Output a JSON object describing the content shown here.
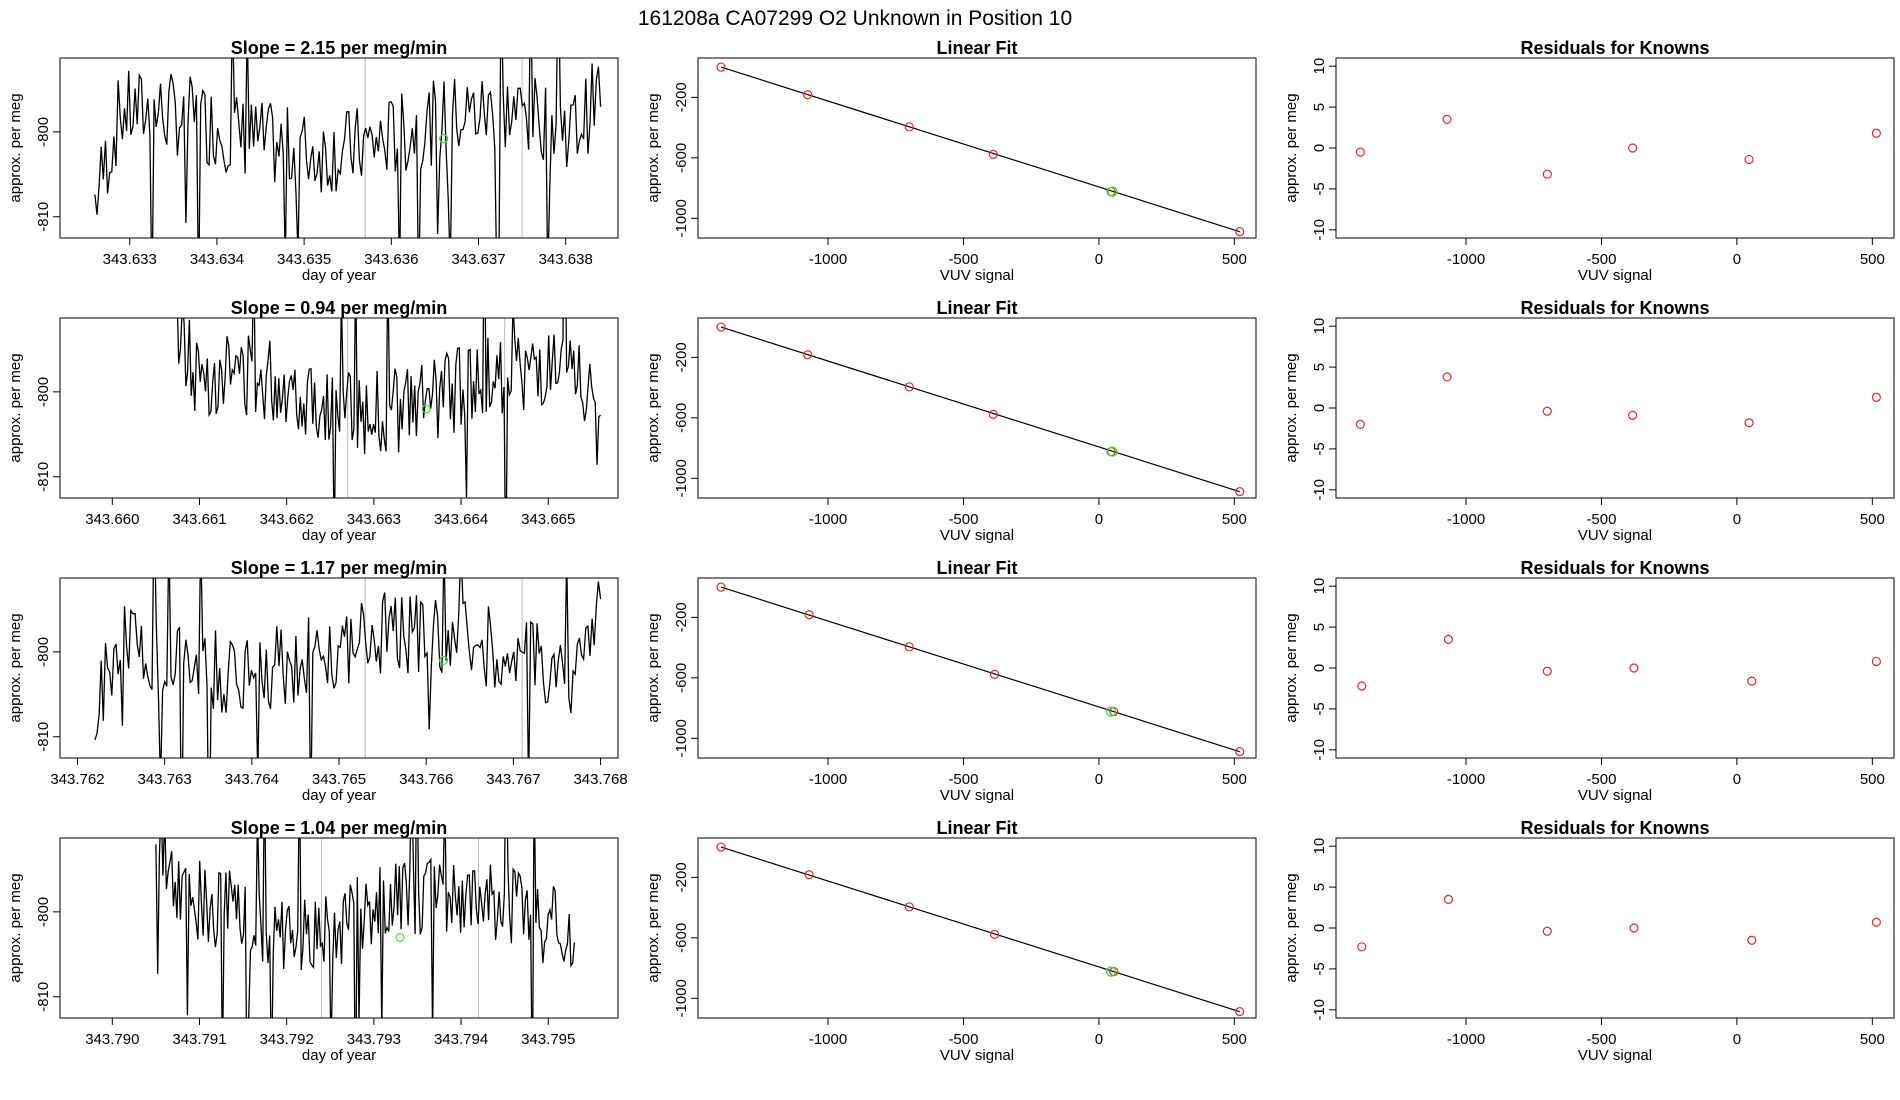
{
  "figure_title": "161208a      CA07299    O2 Unknown in Position  10",
  "colors": {
    "trace": "#000000",
    "unknown": "#3ddc3d",
    "known": "#d03030",
    "cursor": "#bbbbbb",
    "fit": "#000000"
  },
  "chart_data": [
    {
      "panel": "row1-timeseries",
      "type": "line",
      "title": "Slope =  2.15  per meg/min",
      "xlabel": "day of year",
      "ylabel": "approx. per meg",
      "xlim": [
        343.6322,
        343.6386
      ],
      "ylim": [
        -812.5,
        -791.3
      ],
      "xticks": [
        343.633,
        343.634,
        343.635,
        343.636,
        343.637,
        343.638
      ],
      "xtick_labels": [
        "343.633",
        "343.634",
        "343.635",
        "343.636",
        "343.637",
        "343.638"
      ],
      "yticks": [
        -800,
        -810
      ],
      "ytick_labels": [
        "-800",
        "-810"
      ],
      "x_start": 343.6326,
      "x_end": 343.6384,
      "y_start": -808,
      "y_end": -795,
      "vlines": [
        343.6357,
        343.6375
      ],
      "unknown_point": [
        343.6366,
        -800.8
      ],
      "seed": 7
    },
    {
      "panel": "row1-linearfit",
      "type": "scatter",
      "title": "Linear Fit",
      "xlabel": "VUV signal",
      "ylabel": "approx. per meg",
      "xlim": [
        -1480,
        580
      ],
      "ylim": [
        -1130,
        60
      ],
      "xticks": [
        -1000,
        -500,
        0,
        500
      ],
      "xtick_labels": [
        "-1000",
        "-500",
        "0",
        "500"
      ],
      "yticks": [
        -200,
        -600,
        -1000
      ],
      "ytick_labels": [
        "-200",
        "-600",
        "-1000"
      ],
      "fit_line": [
        [
          -1395,
          0
        ],
        [
          520,
          -1088
        ]
      ],
      "knowns_x": [
        -1395,
        -1075,
        -700,
        -390,
        45,
        520
      ],
      "knowns_y": [
        0,
        -183,
        -395,
        -577,
        -823,
        -1088
      ],
      "unknown": [
        50,
        -823
      ]
    },
    {
      "panel": "row1-residuals",
      "type": "scatter",
      "title": "Residuals for Knowns",
      "xlabel": "VUV signal",
      "ylabel": "approx. per meg",
      "xlim": [
        -1480,
        580
      ],
      "ylim": [
        -11,
        11
      ],
      "xticks": [
        -1000,
        -500,
        0,
        500
      ],
      "xtick_labels": [
        "-1000",
        "-500",
        "0",
        "500"
      ],
      "yticks": [
        10,
        5,
        0,
        -5,
        -10
      ],
      "ytick_labels": [
        "10",
        "5",
        "0",
        "-5",
        "-10"
      ],
      "x": [
        -1390,
        -1070,
        -700,
        -385,
        45,
        515
      ],
      "y": [
        -0.5,
        3.5,
        -3.2,
        0.0,
        -1.4,
        1.8
      ]
    },
    {
      "panel": "row2-timeseries",
      "type": "line",
      "title": "Slope =  0.94  per meg/min",
      "xlabel": "day of year",
      "ylabel": "approx. per meg",
      "xlim": [
        343.6594,
        343.6658
      ],
      "ylim": [
        -812.5,
        -791.3
      ],
      "xticks": [
        343.66,
        343.661,
        343.662,
        343.663,
        343.664,
        343.665
      ],
      "xtick_labels": [
        "343.660",
        "343.661",
        "343.662",
        "343.663",
        "343.664",
        "343.665"
      ],
      "yticks": [
        -800,
        -810
      ],
      "ytick_labels": [
        "-800",
        "-810"
      ],
      "x_start": 343.6607,
      "x_end": 343.6656,
      "y_start": -790,
      "y_end": -806,
      "vlines": [
        343.6627,
        343.6645
      ],
      "unknown_point": [
        343.6636,
        -802
      ],
      "seed": 13
    },
    {
      "panel": "row2-linearfit",
      "type": "scatter",
      "title": "Linear Fit",
      "xlabel": "VUV signal",
      "ylabel": "approx. per meg",
      "xlim": [
        -1480,
        580
      ],
      "ylim": [
        -1130,
        60
      ],
      "xticks": [
        -1000,
        -500,
        0,
        500
      ],
      "xtick_labels": [
        "-1000",
        "-500",
        "0",
        "500"
      ],
      "yticks": [
        -200,
        -600,
        -1000
      ],
      "ytick_labels": [
        "-200",
        "-600",
        "-1000"
      ],
      "fit_line": [
        [
          -1395,
          0
        ],
        [
          520,
          -1088
        ]
      ],
      "knowns_x": [
        -1395,
        -1075,
        -700,
        -390,
        45,
        520
      ],
      "knowns_y": [
        0,
        -183,
        -395,
        -577,
        -823,
        -1088
      ],
      "unknown": [
        50,
        -823
      ]
    },
    {
      "panel": "row2-residuals",
      "type": "scatter",
      "title": "Residuals for Knowns",
      "xlabel": "VUV signal",
      "ylabel": "approx. per meg",
      "xlim": [
        -1480,
        580
      ],
      "ylim": [
        -11,
        11
      ],
      "xticks": [
        -1000,
        -500,
        0,
        500
      ],
      "xtick_labels": [
        "-1000",
        "-500",
        "0",
        "500"
      ],
      "yticks": [
        10,
        5,
        0,
        -5,
        -10
      ],
      "ytick_labels": [
        "10",
        "5",
        "0",
        "-5",
        "-10"
      ],
      "x": [
        -1390,
        -1070,
        -700,
        -385,
        45,
        515
      ],
      "y": [
        -2.0,
        3.8,
        -0.4,
        -0.9,
        -1.8,
        1.3
      ]
    },
    {
      "panel": "row3-timeseries",
      "type": "line",
      "title": "Slope =  1.17  per meg/min",
      "xlabel": "day of year",
      "ylabel": "approx. per meg",
      "xlim": [
        343.7618,
        343.7682
      ],
      "ylim": [
        -812.5,
        -791.3
      ],
      "xticks": [
        343.762,
        343.763,
        343.764,
        343.765,
        343.766,
        343.767,
        343.768
      ],
      "xtick_labels": [
        "343.762",
        "343.763",
        "343.764",
        "343.765",
        "343.766",
        "343.767",
        "343.768"
      ],
      "yticks": [
        -800,
        -810
      ],
      "ytick_labels": [
        "-800",
        "-810"
      ],
      "x_start": 343.7622,
      "x_end": 343.768,
      "y_start": -808,
      "y_end": -795,
      "vlines": [
        343.7653,
        343.7671
      ],
      "unknown_point": [
        343.7662,
        -801
      ],
      "seed": 21
    },
    {
      "panel": "row3-linearfit",
      "type": "scatter",
      "title": "Linear Fit",
      "xlabel": "VUV signal",
      "ylabel": "approx. per meg",
      "xlim": [
        -1480,
        580
      ],
      "ylim": [
        -1130,
        60
      ],
      "xticks": [
        -1000,
        -500,
        0,
        500
      ],
      "xtick_labels": [
        "-1000",
        "-500",
        "0",
        "500"
      ],
      "yticks": [
        -200,
        -600,
        -1000
      ],
      "ytick_labels": [
        "-200",
        "-600",
        "-1000"
      ],
      "fit_line": [
        [
          -1395,
          0
        ],
        [
          520,
          -1088
        ]
      ],
      "knowns_x": [
        -1395,
        -1070,
        -700,
        -385,
        55,
        520
      ],
      "knowns_y": [
        0,
        -183,
        -395,
        -577,
        -823,
        -1088
      ],
      "unknown": [
        45,
        -823
      ]
    },
    {
      "panel": "row3-residuals",
      "type": "scatter",
      "title": "Residuals for Knowns",
      "xlabel": "VUV signal",
      "ylabel": "approx. per meg",
      "xlim": [
        -1480,
        580
      ],
      "ylim": [
        -11,
        11
      ],
      "xticks": [
        -1000,
        -500,
        0,
        500
      ],
      "xtick_labels": [
        "-1000",
        "-500",
        "0",
        "500"
      ],
      "yticks": [
        10,
        5,
        0,
        -5,
        -10
      ],
      "ytick_labels": [
        "10",
        "5",
        "0",
        "-5",
        "-10"
      ],
      "x": [
        -1385,
        -1065,
        -700,
        -380,
        55,
        515
      ],
      "y": [
        -2.2,
        3.5,
        -0.4,
        0.0,
        -1.6,
        0.8
      ]
    },
    {
      "panel": "row4-timeseries",
      "type": "line",
      "title": "Slope =  1.04  per meg/min",
      "xlabel": "day of year",
      "ylabel": "approx. per meg",
      "xlim": [
        343.7894,
        343.7958
      ],
      "ylim": [
        -812.5,
        -791.3
      ],
      "xticks": [
        343.79,
        343.791,
        343.792,
        343.793,
        343.794,
        343.795
      ],
      "xtick_labels": [
        "343.790",
        "343.791",
        "343.792",
        "343.793",
        "343.794",
        "343.795"
      ],
      "yticks": [
        -800,
        -810
      ],
      "ytick_labels": [
        "-800",
        "-810"
      ],
      "x_start": 343.7905,
      "x_end": 343.7953,
      "y_start": -790,
      "y_end": -806,
      "vlines": [
        343.7924,
        343.7942
      ],
      "unknown_point": [
        343.7933,
        -803
      ],
      "seed": 33
    },
    {
      "panel": "row4-linearfit",
      "type": "scatter",
      "title": "Linear Fit",
      "xlabel": "VUV signal",
      "ylabel": "approx. per meg",
      "xlim": [
        -1480,
        580
      ],
      "ylim": [
        -1130,
        60
      ],
      "xticks": [
        -1000,
        -500,
        0,
        500
      ],
      "xtick_labels": [
        "-1000",
        "-500",
        "0",
        "500"
      ],
      "yticks": [
        -200,
        -600,
        -1000
      ],
      "ytick_labels": [
        "-200",
        "-600",
        "-1000"
      ],
      "fit_line": [
        [
          -1395,
          0
        ],
        [
          520,
          -1088
        ]
      ],
      "knowns_x": [
        -1395,
        -1070,
        -700,
        -385,
        55,
        520
      ],
      "knowns_y": [
        0,
        -183,
        -395,
        -577,
        -823,
        -1088
      ],
      "unknown": [
        45,
        -823
      ]
    },
    {
      "panel": "row4-residuals",
      "type": "scatter",
      "title": "Residuals for Knowns",
      "xlabel": "VUV signal",
      "ylabel": "approx. per meg",
      "xlim": [
        -1480,
        580
      ],
      "ylim": [
        -11,
        11
      ],
      "xticks": [
        -1000,
        -500,
        0,
        500
      ],
      "xtick_labels": [
        "-1000",
        "-500",
        "0",
        "500"
      ],
      "yticks": [
        10,
        5,
        0,
        -5,
        -10
      ],
      "ytick_labels": [
        "10",
        "5",
        "0",
        "-5",
        "-10"
      ],
      "x": [
        -1385,
        -1065,
        -700,
        -380,
        55,
        515
      ],
      "y": [
        -2.3,
        3.5,
        -0.4,
        0.0,
        -1.5,
        0.7
      ]
    }
  ]
}
